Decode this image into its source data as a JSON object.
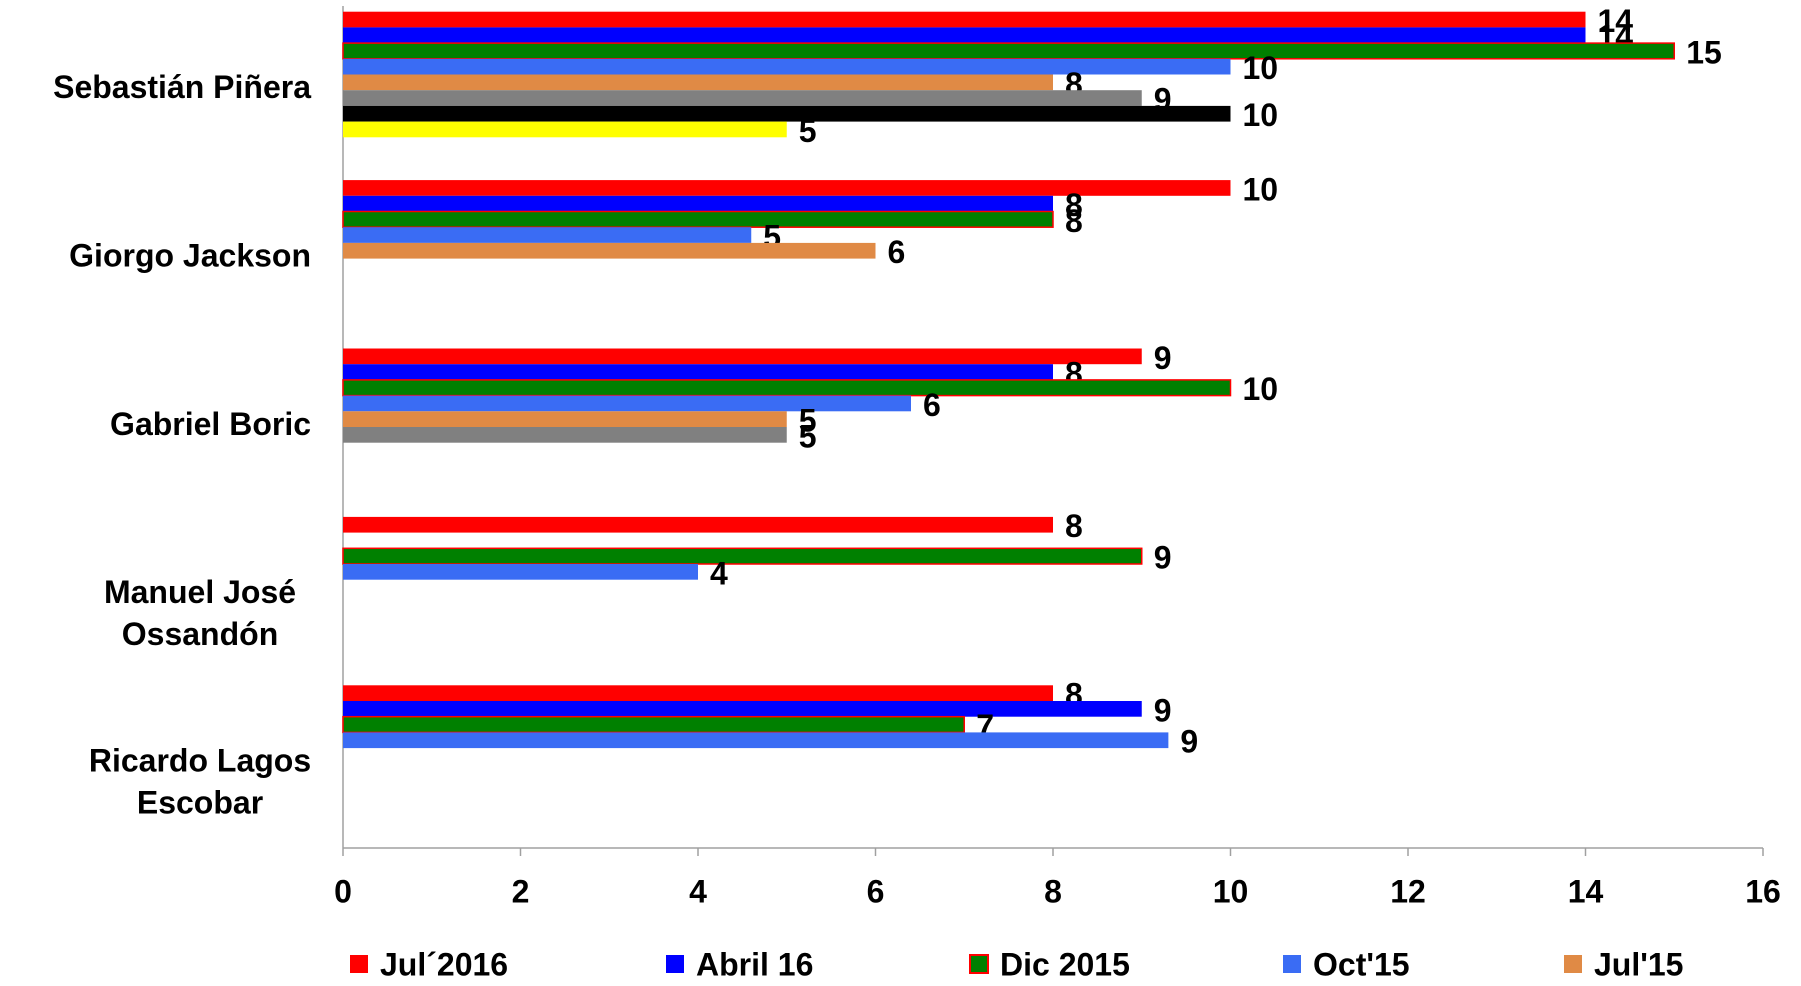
{
  "chart_data": {
    "type": "bar",
    "orientation": "horizontal",
    "categories": [
      "Sebastián Piñera",
      "Giorgo Jackson",
      "Gabriel Boric",
      "Manuel José\nOssandón",
      "Ricardo Lagos\nEscobar"
    ],
    "series": [
      {
        "name": "Jul´2016",
        "color": "#ff0000",
        "values": [
          14,
          10,
          9,
          8,
          8
        ]
      },
      {
        "name": "Abril 16",
        "color": "#0000ff",
        "values": [
          14,
          8,
          8,
          null,
          9
        ]
      },
      {
        "name": "Dic 2015",
        "color": "#008000",
        "edge": "#ff0000",
        "values": [
          15,
          8,
          10,
          9,
          7
        ]
      },
      {
        "name": "Oct'15",
        "color": "#3a6cf4",
        "values": [
          10,
          4.6,
          6.4,
          4,
          9.3
        ],
        "value_labels": [
          "10",
          "5",
          "6",
          "4",
          "9"
        ]
      },
      {
        "name": "Jul'15",
        "color": "#e08a45",
        "values": [
          8,
          6,
          5,
          null,
          null
        ]
      },
      {
        "color": "#808080",
        "values": [
          9,
          null,
          5,
          null,
          null
        ]
      },
      {
        "color": "#000000",
        "values": [
          10,
          null,
          null,
          null,
          null
        ]
      },
      {
        "color": "#ffff00",
        "values": [
          5,
          null,
          null,
          null,
          null
        ]
      }
    ],
    "xlim": [
      0,
      16
    ],
    "xticks": [
      0,
      2,
      4,
      6,
      8,
      10,
      12,
      14,
      16
    ],
    "grid": false
  }
}
